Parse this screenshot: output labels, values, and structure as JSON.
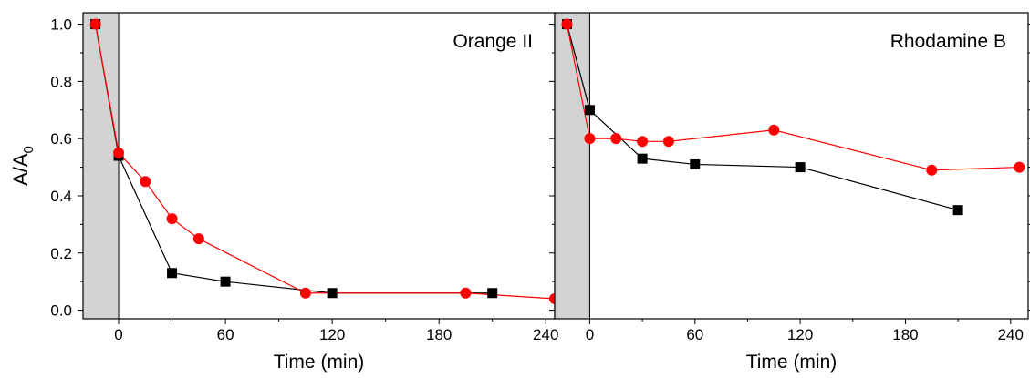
{
  "chart_data": [
    {
      "type": "line",
      "panel_label": "Orange II",
      "xlabel": "Time (min)",
      "ylabel_main": "A/A",
      "ylabel_sub": "0",
      "xlim": [
        -20,
        245
      ],
      "ylim": [
        -0.03,
        1.04
      ],
      "x_ticks": [
        0,
        60,
        120,
        180,
        240
      ],
      "x_tick_labels": [
        "0",
        "60",
        "120",
        "180",
        "240"
      ],
      "y_ticks": [
        0.0,
        0.2,
        0.4,
        0.6,
        0.8,
        1.0
      ],
      "y_tick_labels": [
        "0.0",
        "0.2",
        "0.4",
        "0.6",
        "0.8",
        "1.0"
      ],
      "dark_region": [
        -20,
        0
      ],
      "shade_color": "#d3d3d3",
      "series": [
        {
          "marker": "square",
          "color": "#000000",
          "x": [
            -13,
            0,
            30,
            60,
            120,
            210
          ],
          "y": [
            1.0,
            0.54,
            0.13,
            0.1,
            0.06,
            0.06
          ]
        },
        {
          "marker": "circle",
          "color": "#ff0000",
          "x": [
            -13,
            0,
            15,
            30,
            45,
            105,
            195,
            245
          ],
          "y": [
            1.0,
            0.55,
            0.45,
            0.32,
            0.25,
            0.06,
            0.06,
            0.04
          ]
        }
      ]
    },
    {
      "type": "line",
      "panel_label": "Rhodamine B",
      "xlabel": "Time (min)",
      "xlim": [
        -20,
        250
      ],
      "ylim": [
        -0.03,
        1.04
      ],
      "x_ticks": [
        0,
        60,
        120,
        180,
        240
      ],
      "x_tick_labels": [
        "0",
        "60",
        "120",
        "180",
        "240"
      ],
      "y_ticks": [
        0.0,
        0.2,
        0.4,
        0.6,
        0.8,
        1.0
      ],
      "dark_region": [
        -20,
        0
      ],
      "shade_color": "#d3d3d3",
      "series": [
        {
          "marker": "square",
          "color": "#000000",
          "x": [
            -13,
            0,
            30,
            60,
            120,
            210
          ],
          "y": [
            1.0,
            0.7,
            0.53,
            0.51,
            0.5,
            0.35
          ]
        },
        {
          "marker": "circle",
          "color": "#ff0000",
          "x": [
            -13,
            0,
            15,
            30,
            45,
            105,
            195,
            245
          ],
          "y": [
            1.0,
            0.6,
            0.6,
            0.59,
            0.59,
            0.63,
            0.49,
            0.5
          ]
        }
      ]
    }
  ]
}
